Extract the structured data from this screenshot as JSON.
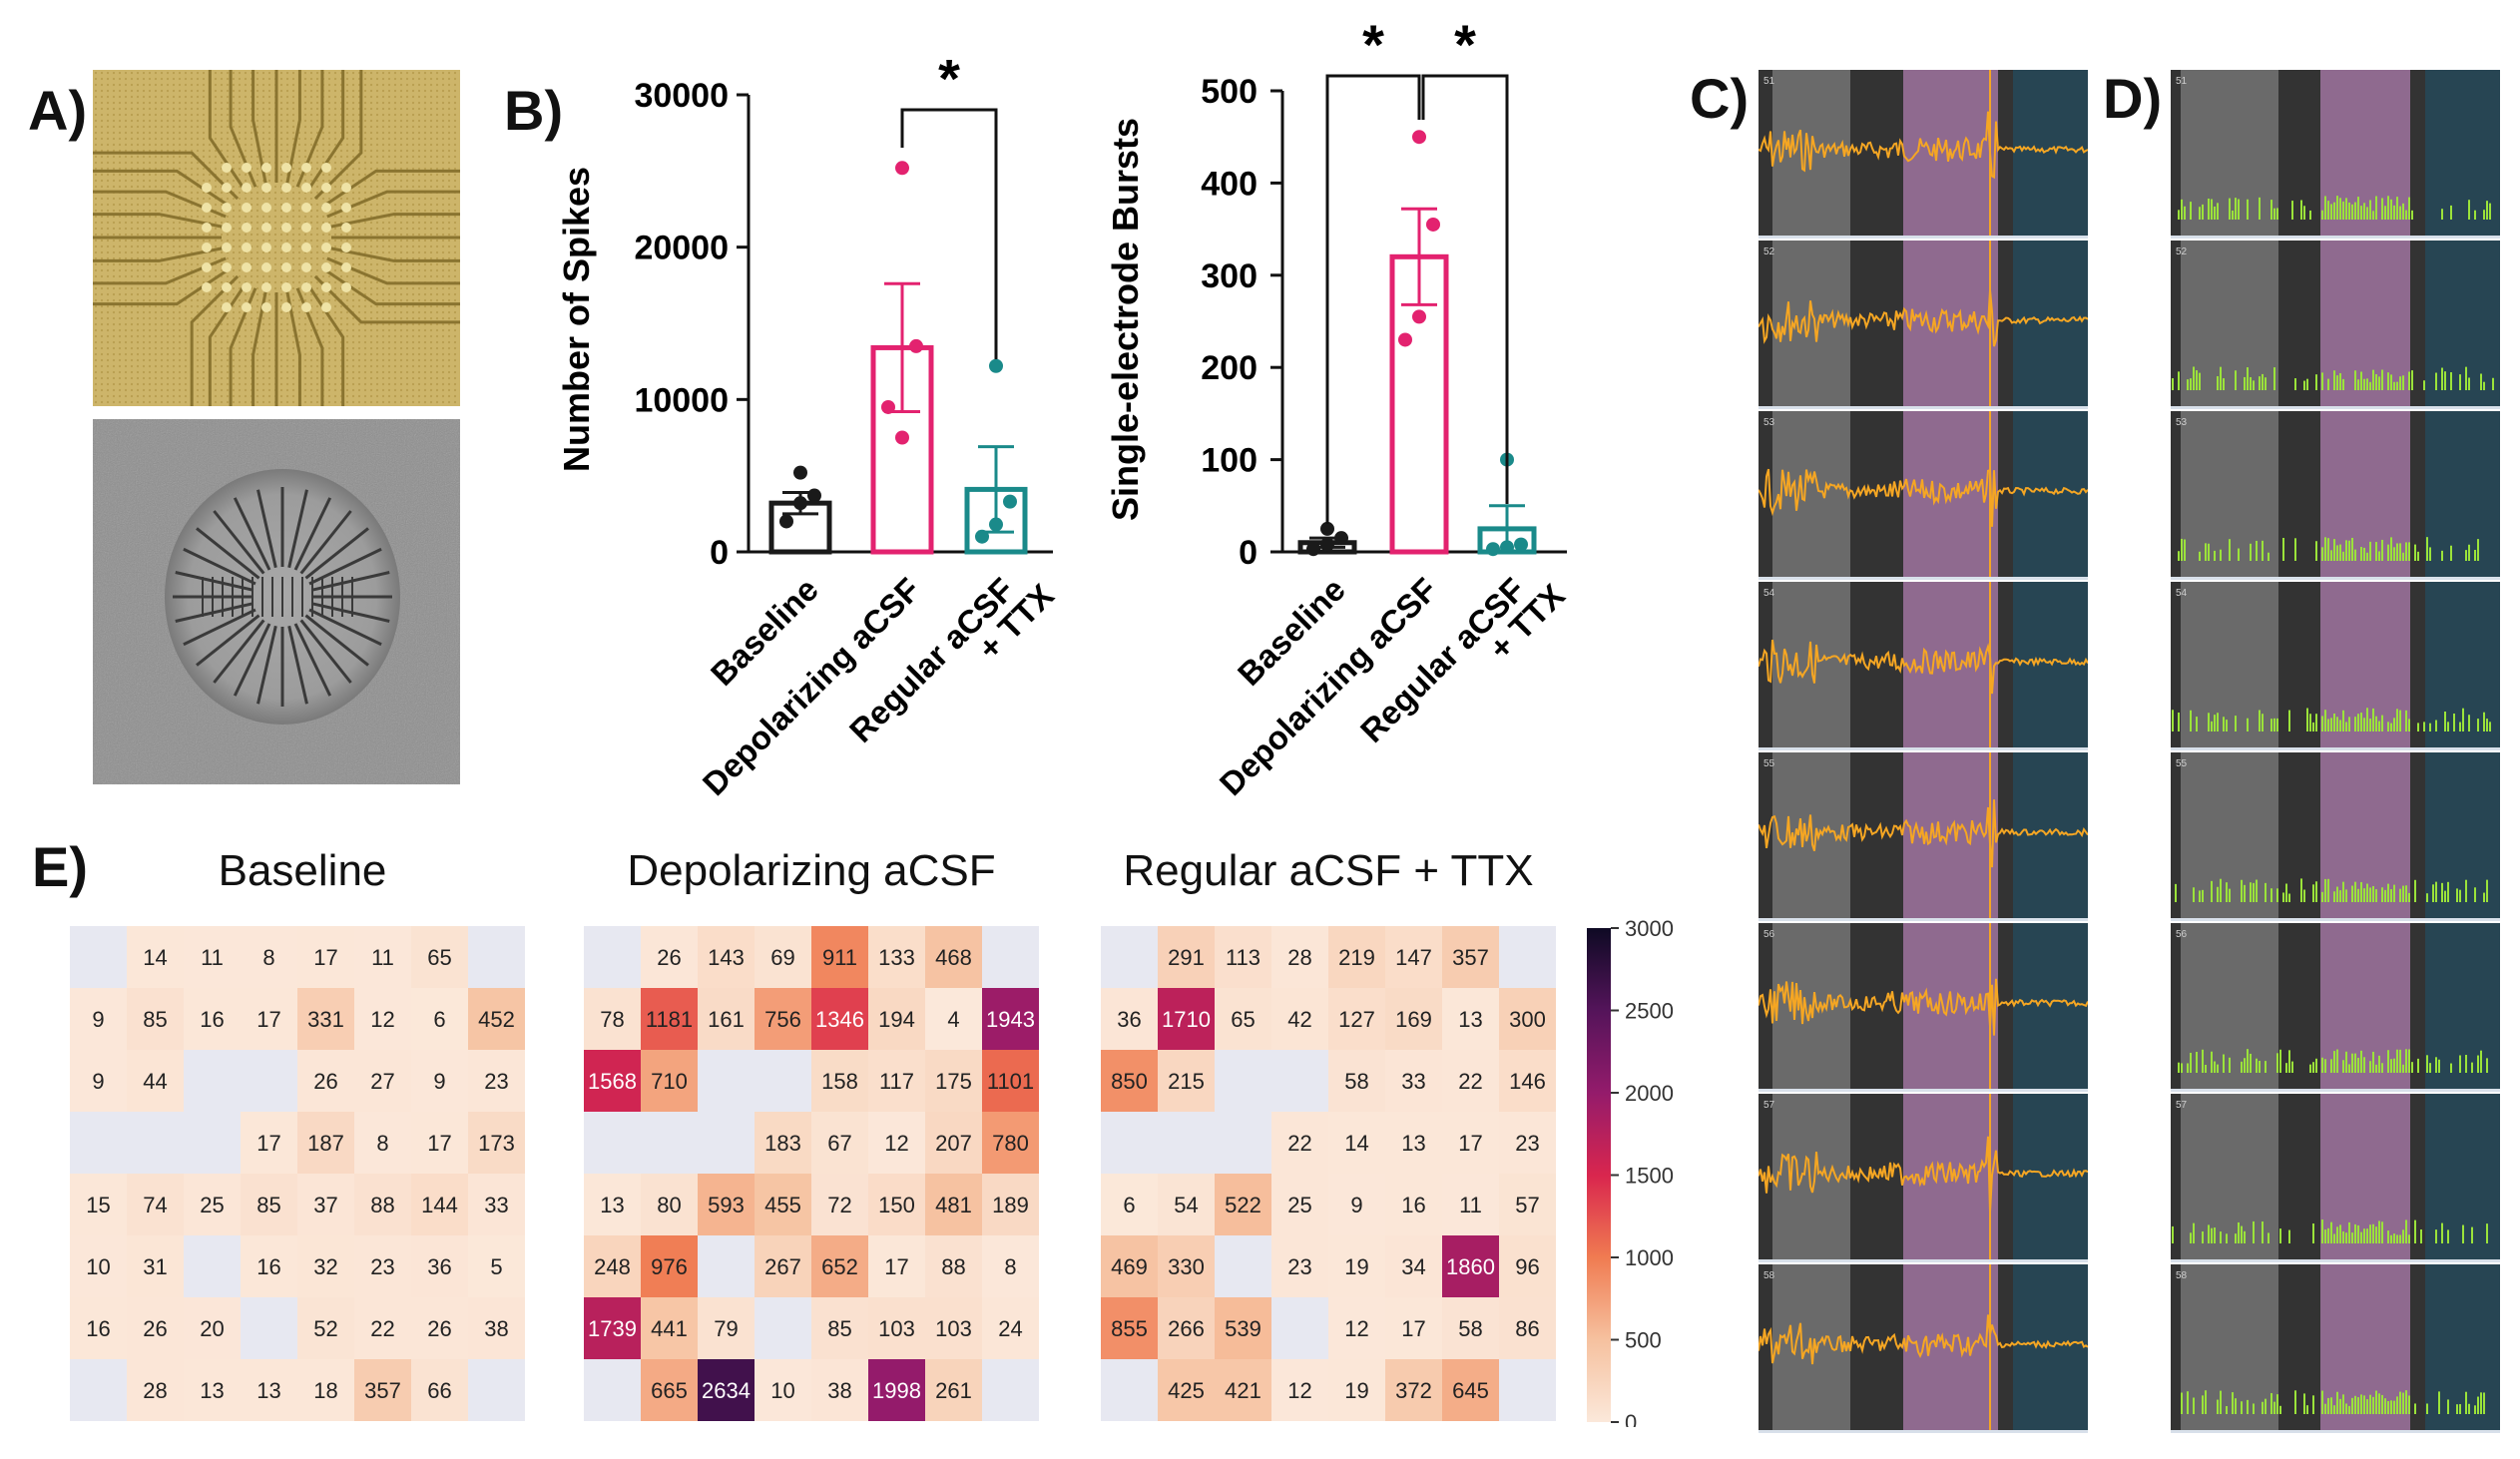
{
  "panels": {
    "a": "A)",
    "b": "B)",
    "c": "C)",
    "d": "D)",
    "e": "E)"
  },
  "chart_data": [
    {
      "type": "bar",
      "ylabel": "Number of Spikes",
      "ylim": [
        0,
        30000
      ],
      "yticks": [
        0,
        10000,
        20000,
        30000
      ],
      "categories": [
        "Baseline",
        "Depolarizing aCSF",
        "Regular aCSF\n+ TTX"
      ],
      "values": [
        3200,
        13400,
        4100
      ],
      "sem": [
        700,
        4200,
        2800
      ],
      "points": [
        [
          2000,
          3200,
          3700,
          5200
        ],
        [
          9500,
          7500,
          13500,
          25200
        ],
        [
          1000,
          1800,
          3300,
          12200
        ]
      ],
      "colors": [
        "#1a1a1a",
        "#e3226f",
        "#1a8a8a"
      ],
      "significance": [
        {
          "pair": [
            1,
            2
          ],
          "label": "*"
        }
      ]
    },
    {
      "type": "bar",
      "ylabel": "Single-electrode Bursts",
      "ylim": [
        0,
        500
      ],
      "yticks": [
        0,
        100,
        200,
        300,
        400,
        500
      ],
      "categories": [
        "Baseline",
        "Depolarizing aCSF",
        "Regular aCSF\n+ TTX"
      ],
      "values": [
        10,
        320,
        25
      ],
      "sem": [
        5,
        52,
        25
      ],
      "points": [
        [
          3,
          8,
          15,
          25
        ],
        [
          230,
          255,
          355,
          450
        ],
        [
          3,
          5,
          8,
          100
        ]
      ],
      "colors": [
        "#1a1a1a",
        "#e3226f",
        "#1a8a8a"
      ],
      "significance": [
        {
          "pair": [
            0,
            1
          ],
          "label": "*"
        },
        {
          "pair": [
            1,
            2
          ],
          "label": "*"
        }
      ]
    },
    {
      "type": "heatmap",
      "title": "Baseline",
      "cells": [
        [
          null,
          14,
          11,
          8,
          17,
          11,
          65,
          null
        ],
        [
          9,
          85,
          16,
          17,
          331,
          12,
          6,
          452
        ],
        [
          9,
          44,
          null,
          null,
          26,
          27,
          9,
          23
        ],
        [
          null,
          null,
          null,
          17,
          187,
          8,
          17,
          173
        ],
        [
          15,
          74,
          25,
          85,
          37,
          88,
          144,
          33
        ],
        [
          10,
          31,
          null,
          16,
          32,
          23,
          36,
          5
        ],
        [
          16,
          26,
          20,
          null,
          52,
          22,
          26,
          38
        ],
        [
          null,
          28,
          13,
          13,
          18,
          357,
          66,
          null
        ]
      ]
    },
    {
      "type": "heatmap",
      "title": "Depolarizing aCSF",
      "cells": [
        [
          null,
          26,
          143,
          69,
          911,
          133,
          468,
          null
        ],
        [
          78,
          1181,
          161,
          756,
          1346,
          194,
          4,
          1943
        ],
        [
          1568,
          710,
          null,
          null,
          158,
          117,
          175,
          1101
        ],
        [
          null,
          null,
          null,
          183,
          67,
          12,
          207,
          780
        ],
        [
          13,
          80,
          593,
          455,
          72,
          150,
          481,
          189
        ],
        [
          248,
          976,
          null,
          267,
          652,
          17,
          88,
          8
        ],
        [
          1739,
          441,
          79,
          null,
          85,
          103,
          103,
          24
        ],
        [
          null,
          665,
          2634,
          10,
          38,
          1998,
          261,
          null
        ]
      ]
    },
    {
      "type": "heatmap",
      "title": "Regular aCSF + TTX",
      "cells": [
        [
          null,
          291,
          113,
          28,
          219,
          147,
          357,
          null
        ],
        [
          36,
          1710,
          65,
          42,
          127,
          169,
          13,
          300
        ],
        [
          850,
          215,
          null,
          null,
          58,
          33,
          22,
          146
        ],
        [
          null,
          null,
          null,
          22,
          14,
          13,
          17,
          23
        ],
        [
          6,
          54,
          522,
          25,
          9,
          16,
          11,
          57
        ],
        [
          469,
          330,
          null,
          23,
          19,
          34,
          1860,
          96
        ],
        [
          855,
          266,
          539,
          null,
          12,
          17,
          58,
          86
        ],
        [
          null,
          425,
          421,
          12,
          19,
          372,
          645,
          null
        ]
      ]
    }
  ],
  "colorbar": {
    "min": 0,
    "max": 3000,
    "ticks": [
      0,
      500,
      1000,
      1500,
      2000,
      2500,
      3000
    ]
  },
  "traces": {
    "c_channels": [
      "51",
      "52",
      "53",
      "54",
      "55",
      "56",
      "57",
      "58"
    ],
    "d_channels": [
      "51",
      "52",
      "53",
      "54",
      "55",
      "56",
      "57",
      "58"
    ],
    "colors": {
      "trace": "#f5a623",
      "raster": "#9be33a",
      "dark": "#333333",
      "gray": "#6a6a6a",
      "pink": "#8f6a8f",
      "teal": "#274553"
    }
  }
}
